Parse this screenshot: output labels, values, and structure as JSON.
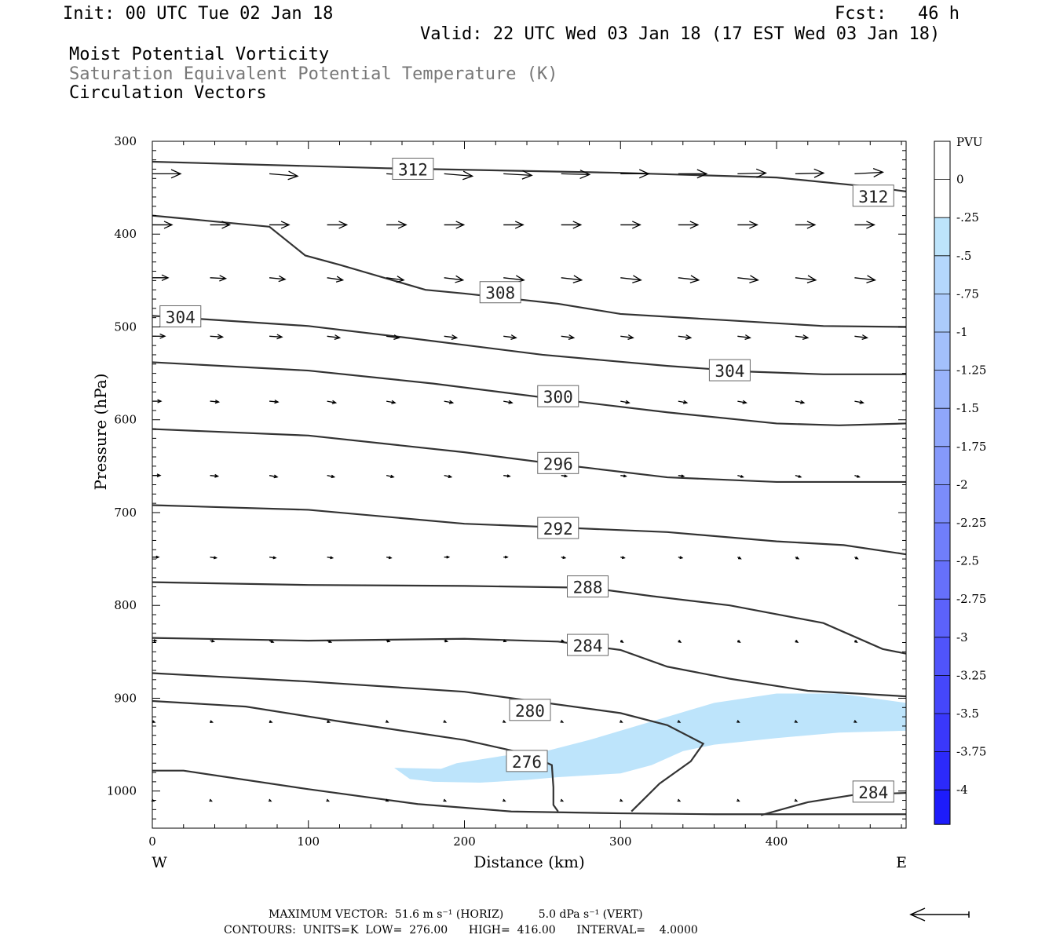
{
  "header": {
    "init": "Init: 00 UTC Tue 02 Jan 18",
    "fcst": "Fcst:   46 h",
    "valid": "Valid: 22 UTC Wed 03 Jan 18 (17 EST Wed 03 Jan 18)",
    "field1": "Moist Potential Vorticity",
    "field2": "Saturation Equivalent Potential Temperature (K)",
    "field3": "Circulation Vectors"
  },
  "footer": {
    "vector_line": "MAXIMUM VECTOR:  51.6 m s⁻¹ (HORIZ)          5.0 dPa s⁻¹ (VERT)",
    "contour_line": "CONTOURS:  UNITS=K  LOW=  276.00      HIGH=  416.00      INTERVAL=    4.0000"
  },
  "colors": {
    "contour": "#333333",
    "mpv_fill": "#bde4fb"
  },
  "chart_data": {
    "type": "cross-section",
    "xlabel": "Distance (km)",
    "ylabel": "Pressure (hPa)",
    "xlim": [
      0,
      483
    ],
    "ylim": [
      1040,
      300
    ],
    "xticks": [
      0,
      100,
      200,
      300,
      400
    ],
    "yticks": [
      300,
      400,
      500,
      600,
      700,
      800,
      900,
      1000
    ],
    "x_end_labels": {
      "left": "W",
      "right": "E"
    },
    "colorbar": {
      "unit": "PVU",
      "ticks": [
        "0",
        "-.25",
        "-.5",
        "-.75",
        "-1",
        "-1.25",
        "-1.5",
        "-1.75",
        "-2",
        "-2.25",
        "-2.5",
        "-2.75",
        "-3",
        "-3.25",
        "-3.5",
        "-3.75",
        "-4"
      ],
      "colors": [
        "#ffffff",
        "#ffffff",
        "#bde4fb",
        "#b4d7fc",
        "#abcbfb",
        "#a3c0fb",
        "#99b3fb",
        "#8fa6fb",
        "#8599fb",
        "#7b8cfb",
        "#707efb",
        "#6670fb",
        "#5c62fb",
        "#5054fb",
        "#4547fb",
        "#3a38fb",
        "#2c2afb",
        "#1d1cfb"
      ]
    },
    "contours": [
      {
        "value": 312,
        "label": "312",
        "points": [
          [
            0,
            322
          ],
          [
            150,
            329
          ],
          [
            300,
            334
          ],
          [
            400,
            339
          ],
          [
            460,
            349
          ],
          [
            483,
            354
          ]
        ],
        "labels_at": [
          [
            167,
            330
          ],
          [
            462,
            359
          ]
        ]
      },
      {
        "value": 308,
        "label": "308",
        "points": [
          [
            0,
            380
          ],
          [
            75,
            392
          ],
          [
            98,
            423
          ],
          [
            120,
            433
          ],
          [
            175,
            460
          ],
          [
            200,
            464
          ],
          [
            260,
            475
          ],
          [
            300,
            486
          ],
          [
            370,
            493
          ],
          [
            430,
            499
          ],
          [
            483,
            500
          ]
        ],
        "labels_at": [
          [
            223,
            463
          ]
        ]
      },
      {
        "value": 304,
        "label": "304",
        "points": [
          [
            0,
            488
          ],
          [
            100,
            499
          ],
          [
            160,
            511
          ],
          [
            250,
            530
          ],
          [
            330,
            542
          ],
          [
            380,
            548
          ],
          [
            430,
            551
          ],
          [
            483,
            551
          ]
        ],
        "labels_at": [
          [
            18,
            489
          ],
          [
            370,
            547
          ]
        ]
      },
      {
        "value": 300,
        "label": "300",
        "points": [
          [
            0,
            538
          ],
          [
            100,
            547
          ],
          [
            180,
            561
          ],
          [
            260,
            578
          ],
          [
            330,
            592
          ],
          [
            400,
            604
          ],
          [
            440,
            606
          ],
          [
            483,
            604
          ]
        ],
        "labels_at": [
          [
            260,
            575
          ]
        ]
      },
      {
        "value": 296,
        "label": "296",
        "points": [
          [
            0,
            610
          ],
          [
            100,
            617
          ],
          [
            200,
            635
          ],
          [
            260,
            648
          ],
          [
            330,
            662
          ],
          [
            400,
            667
          ],
          [
            483,
            667
          ]
        ],
        "labels_at": [
          [
            260,
            647
          ]
        ]
      },
      {
        "value": 292,
        "label": "292",
        "points": [
          [
            0,
            692
          ],
          [
            100,
            697
          ],
          [
            200,
            712
          ],
          [
            260,
            716
          ],
          [
            330,
            721
          ],
          [
            400,
            731
          ],
          [
            443,
            735
          ],
          [
            483,
            745
          ]
        ],
        "labels_at": [
          [
            260,
            717
          ]
        ]
      },
      {
        "value": 288,
        "label": "288",
        "points": [
          [
            0,
            775
          ],
          [
            100,
            778
          ],
          [
            200,
            779
          ],
          [
            280,
            781
          ],
          [
            320,
            790
          ],
          [
            370,
            800
          ],
          [
            430,
            819
          ],
          [
            468,
            847
          ],
          [
            483,
            852
          ]
        ],
        "labels_at": [
          [
            279,
            780
          ]
        ]
      },
      {
        "value": 284,
        "label": "284",
        "points": [
          [
            0,
            835
          ],
          [
            100,
            838
          ],
          [
            200,
            836
          ],
          [
            260,
            839
          ],
          [
            300,
            848
          ],
          [
            330,
            866
          ],
          [
            370,
            879
          ],
          [
            420,
            892
          ],
          [
            483,
            898
          ]
        ],
        "labels_at": [
          [
            279,
            843
          ]
        ]
      },
      {
        "value": 284,
        "label": "284",
        "points": [
          [
            390,
            1026
          ],
          [
            420,
            1012
          ],
          [
            450,
            1004
          ],
          [
            483,
            1002
          ]
        ],
        "labels_at": [
          [
            462,
            1001
          ]
        ]
      },
      {
        "value": 280,
        "label": "280",
        "points": [
          [
            0,
            873
          ],
          [
            100,
            882
          ],
          [
            200,
            893
          ],
          [
            300,
            916
          ],
          [
            330,
            929
          ],
          [
            353,
            949
          ],
          [
            345,
            968
          ],
          [
            325,
            992
          ],
          [
            307,
            1022
          ]
        ],
        "labels_at": [
          [
            242,
            913
          ]
        ]
      },
      {
        "value": 276,
        "label": "276",
        "points": [
          [
            0,
            903
          ],
          [
            60,
            909
          ],
          [
            120,
            925
          ],
          [
            200,
            945
          ],
          [
            240,
            960
          ],
          [
            256,
            972
          ],
          [
            257,
            996
          ],
          [
            257,
            1015
          ],
          [
            260,
            1022
          ]
        ],
        "labels_at": [
          [
            240,
            968
          ]
        ]
      },
      {
        "value": 0,
        "label": "",
        "points": [
          [
            0,
            978
          ],
          [
            20,
            978
          ],
          [
            100,
            998
          ],
          [
            170,
            1014
          ],
          [
            230,
            1022
          ],
          [
            300,
            1024
          ],
          [
            360,
            1025
          ],
          [
            483,
            1025
          ]
        ],
        "labels_at": []
      }
    ],
    "mpv_region_points": [
      [
        155,
        975
      ],
      [
        185,
        976
      ],
      [
        195,
        970
      ],
      [
        225,
        962
      ],
      [
        250,
        958
      ],
      [
        280,
        945
      ],
      [
        330,
        920
      ],
      [
        360,
        905
      ],
      [
        400,
        895
      ],
      [
        440,
        895
      ],
      [
        483,
        905
      ],
      [
        483,
        935
      ],
      [
        440,
        937
      ],
      [
        400,
        943
      ],
      [
        360,
        950
      ],
      [
        340,
        957
      ],
      [
        320,
        972
      ],
      [
        300,
        981
      ],
      [
        260,
        985
      ],
      [
        240,
        988
      ],
      [
        210,
        991
      ],
      [
        180,
        990
      ],
      [
        165,
        987
      ]
    ],
    "vectors": [
      {
        "p": 335,
        "x": [
          0,
          75,
          150,
          187,
          225,
          262,
          300,
          337,
          375,
          412,
          450
        ],
        "dx": [
          36,
          36,
          36,
          36,
          36,
          36,
          36,
          36,
          36,
          36,
          36
        ],
        "dy": [
          0,
          3,
          2,
          3,
          2,
          1,
          0,
          0,
          -1,
          -1,
          -2
        ]
      },
      {
        "p": 390,
        "x": [
          0,
          37,
          75,
          112,
          150,
          187,
          225,
          262,
          300,
          337,
          375,
          412,
          450
        ],
        "dx": [
          25,
          25,
          25,
          25,
          25,
          25,
          25,
          25,
          25,
          25,
          25,
          25,
          25
        ],
        "dy": [
          0,
          0,
          0,
          0,
          0,
          0,
          0,
          0,
          0,
          0,
          0,
          0,
          0
        ]
      },
      {
        "p": 447,
        "x": [
          0,
          37,
          75,
          112,
          150,
          187,
          225,
          262,
          300,
          337,
          375,
          412,
          450
        ],
        "dx": [
          20,
          20,
          20,
          20,
          22,
          24,
          26,
          26,
          26,
          26,
          26,
          26,
          26
        ],
        "dy": [
          0,
          1,
          2,
          3,
          3,
          3,
          3,
          3,
          3,
          3,
          3,
          3,
          3
        ]
      },
      {
        "p": 510,
        "x": [
          0,
          37,
          75,
          112,
          150,
          187,
          225,
          262,
          300,
          337,
          375,
          412,
          450
        ],
        "dx": [
          16,
          16,
          16,
          16,
          16,
          16,
          16,
          16,
          16,
          16,
          16,
          16,
          16
        ],
        "dy": [
          0,
          1,
          1,
          2,
          2,
          2,
          2,
          2,
          2,
          2,
          2,
          2,
          2
        ]
      },
      {
        "p": 580,
        "x": [
          0,
          37,
          75,
          112,
          150,
          187,
          225,
          262,
          300,
          337,
          375,
          412,
          450
        ],
        "dx": [
          11,
          11,
          11,
          11,
          11,
          11,
          11,
          11,
          11,
          11,
          11,
          11,
          11
        ],
        "dy": [
          0,
          1,
          1,
          2,
          2,
          2,
          2,
          2,
          2,
          2,
          2,
          2,
          2
        ]
      },
      {
        "p": 660,
        "x": [
          0,
          37,
          75,
          112,
          150,
          187,
          225,
          262,
          300,
          337,
          375,
          412,
          450
        ],
        "dx": [
          10,
          10,
          10,
          9,
          9,
          9,
          8,
          7,
          7,
          7,
          7,
          7,
          6
        ],
        "dy": [
          0,
          1,
          2,
          2,
          2,
          2,
          1,
          1,
          1,
          1,
          2,
          2,
          2
        ]
      },
      {
        "p": 748,
        "x": [
          0,
          37,
          75,
          112,
          150,
          187,
          225,
          262,
          300,
          337,
          375,
          412,
          450
        ],
        "dx": [
          8,
          8,
          8,
          7,
          6,
          6,
          5,
          5,
          5,
          5,
          4,
          4,
          4
        ],
        "dy": [
          0,
          1,
          1,
          1,
          1,
          0,
          0,
          1,
          1,
          1,
          2,
          2,
          2
        ]
      },
      {
        "p": 838,
        "x": [
          0,
          37,
          75,
          112,
          150,
          187,
          225,
          262,
          300,
          337,
          375,
          412,
          450
        ],
        "dx": [
          5,
          5,
          5,
          5,
          4,
          4,
          3,
          3,
          3,
          3,
          3,
          3,
          3
        ],
        "dy": [
          0,
          1,
          2,
          2,
          1,
          1,
          1,
          1,
          2,
          2,
          2,
          2,
          2
        ]
      },
      {
        "p": 925,
        "x": [
          0,
          37,
          75,
          112,
          150,
          187,
          225,
          262,
          300,
          337,
          375,
          412,
          450
        ],
        "dx": [
          3,
          3,
          3,
          3,
          2,
          2,
          2,
          2,
          2,
          2,
          2,
          2,
          2
        ],
        "dy": [
          1,
          1,
          1,
          1,
          1,
          1,
          1,
          1,
          1,
          1,
          1,
          1,
          1
        ]
      },
      {
        "p": 1010,
        "x": [
          0,
          37,
          75,
          112,
          150,
          187,
          225,
          262,
          300,
          337,
          375,
          412,
          450
        ],
        "dx": [
          2,
          2,
          2,
          2,
          2,
          2,
          2,
          2,
          2,
          2,
          2,
          2,
          2
        ],
        "dy": [
          1,
          1,
          1,
          1,
          1,
          1,
          1,
          1,
          1,
          1,
          1,
          1,
          1
        ]
      }
    ]
  }
}
